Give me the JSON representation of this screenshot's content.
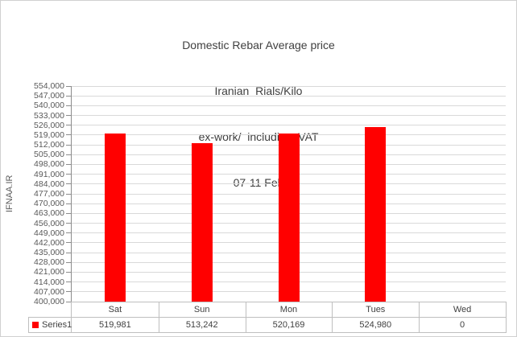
{
  "window": {
    "background": "#ffffff",
    "border_color": "#d0d0d0"
  },
  "chart_data": {
    "type": "bar",
    "title_lines": [
      "Domestic Rebar Average price",
      "Iranian  Rials/Kilo",
      "ex-work/  including  VAT",
      "07-11 Feb"
    ],
    "ylabel": "IFNAA.IR",
    "xlabel": "",
    "categories": [
      "Sat",
      "Sun",
      "Mon",
      "Tues",
      "Wed"
    ],
    "series": [
      {
        "name": "Series1",
        "color": "#ff0000",
        "values": [
          519981,
          513242,
          520169,
          524980,
          0
        ]
      }
    ],
    "value_labels_formatted": [
      "519,981",
      "513,242",
      "520,169",
      "524,980",
      "0"
    ],
    "ylim": [
      400000,
      554000
    ],
    "ytick_step": 7000,
    "ytick_labels": [
      "554,000",
      "547,000",
      "540,000",
      "533,000",
      "526,000",
      "519,000",
      "512,000",
      "505,000",
      "498,000",
      "491,000",
      "484,000",
      "477,000",
      "470,000",
      "463,000",
      "456,000",
      "449,000",
      "442,000",
      "435,000",
      "428,000",
      "421,000",
      "414,000",
      "407,000",
      "400,000"
    ],
    "grid": true,
    "legend_position": "bottom-data-table"
  },
  "colors": {
    "bar": "#ff0000",
    "gridline": "#d9d9d9",
    "axis_line": "#8c8c8c",
    "tick_mark": "#8c8c8c",
    "table_border": "#bfbfbf",
    "tick_text": "#595959",
    "title_text": "#404040",
    "cell_text": "#404040"
  }
}
